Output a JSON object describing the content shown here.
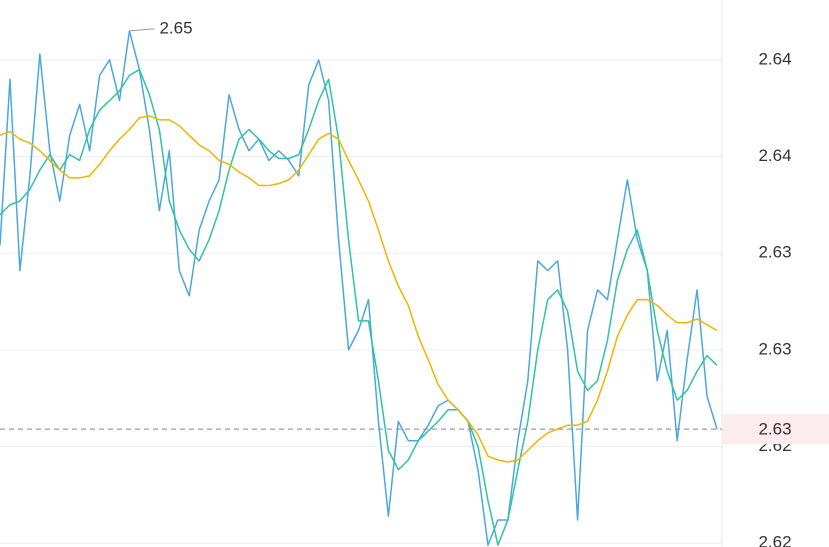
{
  "chart_data": {
    "type": "line",
    "ylim": [
      2.6193,
      2.6476
    ],
    "yticks": [
      {
        "value": 2.6445,
        "label": "2.64"
      },
      {
        "value": 2.6395,
        "label": "2.64"
      },
      {
        "value": 2.6345,
        "label": "2.63"
      },
      {
        "value": 2.6295,
        "label": "2.63"
      },
      {
        "value": 2.6245,
        "label": "2.62"
      },
      {
        "value": 2.6195,
        "label": "2.62"
      }
    ],
    "grid": true,
    "series": [
      {
        "color": "#4aa8e0",
        "values": [
          2.6349,
          2.6435,
          2.6336,
          2.6385,
          2.6448,
          2.6398,
          2.6372,
          2.6406,
          2.6422,
          2.6398,
          2.6437,
          2.6445,
          2.6424,
          2.646,
          2.644,
          2.6409,
          2.6367,
          2.6398,
          2.6336,
          2.6323,
          2.6357,
          2.6372,
          2.6383,
          2.6427,
          2.6409,
          2.6398,
          2.6404,
          2.6393,
          2.6398,
          2.6393,
          2.6385,
          2.6432,
          2.6445,
          2.6424,
          2.6352,
          2.6295,
          2.6305,
          2.6321,
          2.6258,
          2.6209,
          2.6258,
          2.6248,
          2.6248,
          2.6256,
          2.6266,
          2.6269,
          2.6264,
          2.6258,
          2.6233,
          2.6194,
          2.6207,
          2.6207,
          2.6248,
          2.6279,
          2.6341,
          2.6336,
          2.6341,
          2.6295,
          2.6207,
          2.6305,
          2.6326,
          2.6321,
          2.6352,
          2.6383,
          2.6352,
          2.6336,
          2.6279,
          2.6305,
          2.6248,
          2.629,
          2.6326,
          2.6271,
          2.6254
        ]
      },
      {
        "color": "#2ec4a0",
        "values": [
          2.6365,
          2.637,
          2.6372,
          2.6378,
          2.6388,
          2.6396,
          2.6388,
          2.6396,
          2.6393,
          2.6409,
          2.6419,
          2.6424,
          2.6429,
          2.6437,
          2.644,
          2.6427,
          2.6409,
          2.6372,
          2.6357,
          2.6347,
          2.6341,
          2.6352,
          2.6367,
          2.6388,
          2.6404,
          2.6409,
          2.6404,
          2.6398,
          2.6394,
          2.6394,
          2.6396,
          2.6409,
          2.6424,
          2.6435,
          2.6404,
          2.6352,
          2.631,
          2.631,
          2.6279,
          2.6243,
          2.6233,
          2.6238,
          2.6248,
          2.6253,
          2.6258,
          2.6264,
          2.6264,
          2.6258,
          2.6245,
          2.6217,
          2.6194,
          2.6207,
          2.6233,
          2.6258,
          2.6295,
          2.6321,
          2.6326,
          2.6315,
          2.6284,
          2.6274,
          2.6279,
          2.63,
          2.6331,
          2.6347,
          2.6357,
          2.6336,
          2.6305,
          2.6284,
          2.6269,
          2.6274,
          2.6284,
          2.6292,
          2.6287
        ]
      },
      {
        "color": "#f0b400",
        "values": [
          2.6406,
          2.6408,
          2.6404,
          2.6402,
          2.6398,
          2.6393,
          2.6388,
          2.6384,
          2.6384,
          2.6385,
          2.6391,
          2.6398,
          2.6404,
          2.6409,
          2.6415,
          2.6416,
          2.6414,
          2.6414,
          2.6411,
          2.6406,
          2.6401,
          2.6398,
          2.6393,
          2.6391,
          2.6387,
          2.6384,
          2.638,
          2.638,
          2.6381,
          2.6383,
          2.6388,
          2.6396,
          2.6404,
          2.6407,
          2.6404,
          2.6393,
          2.6383,
          2.6372,
          2.6357,
          2.6341,
          2.6328,
          2.6318,
          2.6302,
          2.629,
          2.6277,
          2.6269,
          2.6264,
          2.6258,
          2.6251,
          2.624,
          2.6238,
          2.6237,
          2.6238,
          2.6243,
          2.6248,
          2.6252,
          2.6254,
          2.6256,
          2.6256,
          2.6258,
          2.6269,
          2.6284,
          2.6302,
          2.6313,
          2.6321,
          2.6321,
          2.6318,
          2.6313,
          2.6309,
          2.6309,
          2.6311,
          2.6308,
          2.6305
        ]
      }
    ],
    "max_annotation": {
      "value": 2.646,
      "label": "2.65"
    },
    "last_price": {
      "value": 2.6254,
      "label": "2.63",
      "color": "#e5484d"
    }
  }
}
